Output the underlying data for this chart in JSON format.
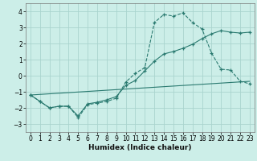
{
  "xlabel": "Humidex (Indice chaleur)",
  "background_color": "#cceee8",
  "grid_color": "#aad4ce",
  "line_color": "#2a7a70",
  "xlim": [
    -0.5,
    23.5
  ],
  "ylim": [
    -3.5,
    4.5
  ],
  "xticks": [
    0,
    1,
    2,
    3,
    4,
    5,
    6,
    7,
    8,
    9,
    10,
    11,
    12,
    13,
    14,
    15,
    16,
    17,
    18,
    19,
    20,
    21,
    22,
    23
  ],
  "yticks": [
    -3,
    -2,
    -1,
    0,
    1,
    2,
    3,
    4
  ],
  "series1_x": [
    0,
    1,
    2,
    3,
    4,
    5,
    6,
    7,
    8,
    9,
    10,
    11,
    12,
    13,
    14,
    15,
    16,
    17,
    18,
    19,
    20,
    21,
    22,
    23
  ],
  "series1_y": [
    -1.2,
    -1.6,
    -2.0,
    -1.9,
    -1.9,
    -2.6,
    -1.8,
    -1.7,
    -1.6,
    -1.4,
    -0.4,
    0.15,
    0.5,
    3.3,
    3.8,
    3.7,
    3.9,
    3.3,
    2.9,
    1.4,
    0.4,
    0.35,
    -0.35,
    -0.5
  ],
  "series2_x": [
    0,
    1,
    2,
    3,
    4,
    5,
    6,
    7,
    8,
    9,
    10,
    11,
    12,
    13,
    14,
    15,
    16,
    17,
    18,
    19,
    20,
    21,
    22,
    23
  ],
  "series2_y": [
    -1.2,
    -1.6,
    -2.0,
    -1.9,
    -1.9,
    -2.5,
    -1.75,
    -1.65,
    -1.5,
    -1.3,
    -0.6,
    -0.3,
    0.3,
    0.9,
    1.35,
    1.5,
    1.7,
    1.95,
    2.3,
    2.6,
    2.8,
    2.7,
    2.65,
    2.7
  ],
  "series3_x": [
    0,
    23
  ],
  "series3_y": [
    -1.2,
    -0.35
  ]
}
